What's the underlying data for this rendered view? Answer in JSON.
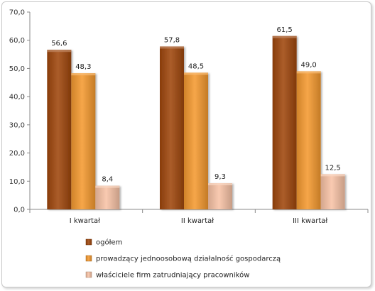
{
  "chart_data": {
    "type": "bar",
    "categories": [
      "I kwartał",
      "II kwartał",
      "III kwartał"
    ],
    "series": [
      {
        "name": "ogółem",
        "values": [
          56.6,
          57.8,
          61.5
        ],
        "labels": [
          "56,6",
          "57,8",
          "61,5"
        ],
        "color": "#a0470d"
      },
      {
        "name": "prowadzący jednoosobową działalność gospodarczą",
        "values": [
          48.3,
          48.5,
          49.0
        ],
        "labels": [
          "48,3",
          "48,5",
          "49,0"
        ],
        "color": "#f59a30"
      },
      {
        "name": "właściciele firm zatrudniający pracowników",
        "values": [
          8.4,
          9.3,
          12.5
        ],
        "labels": [
          "8,4",
          "9,3",
          "12,5"
        ],
        "color": "#f8c3a6"
      }
    ],
    "yticks": [
      "0,0",
      "10,0",
      "20,0",
      "30,0",
      "40,0",
      "50,0",
      "60,0",
      "70,0"
    ],
    "ylim": [
      0,
      70
    ],
    "grid": false,
    "legend_position": "bottom-left"
  }
}
